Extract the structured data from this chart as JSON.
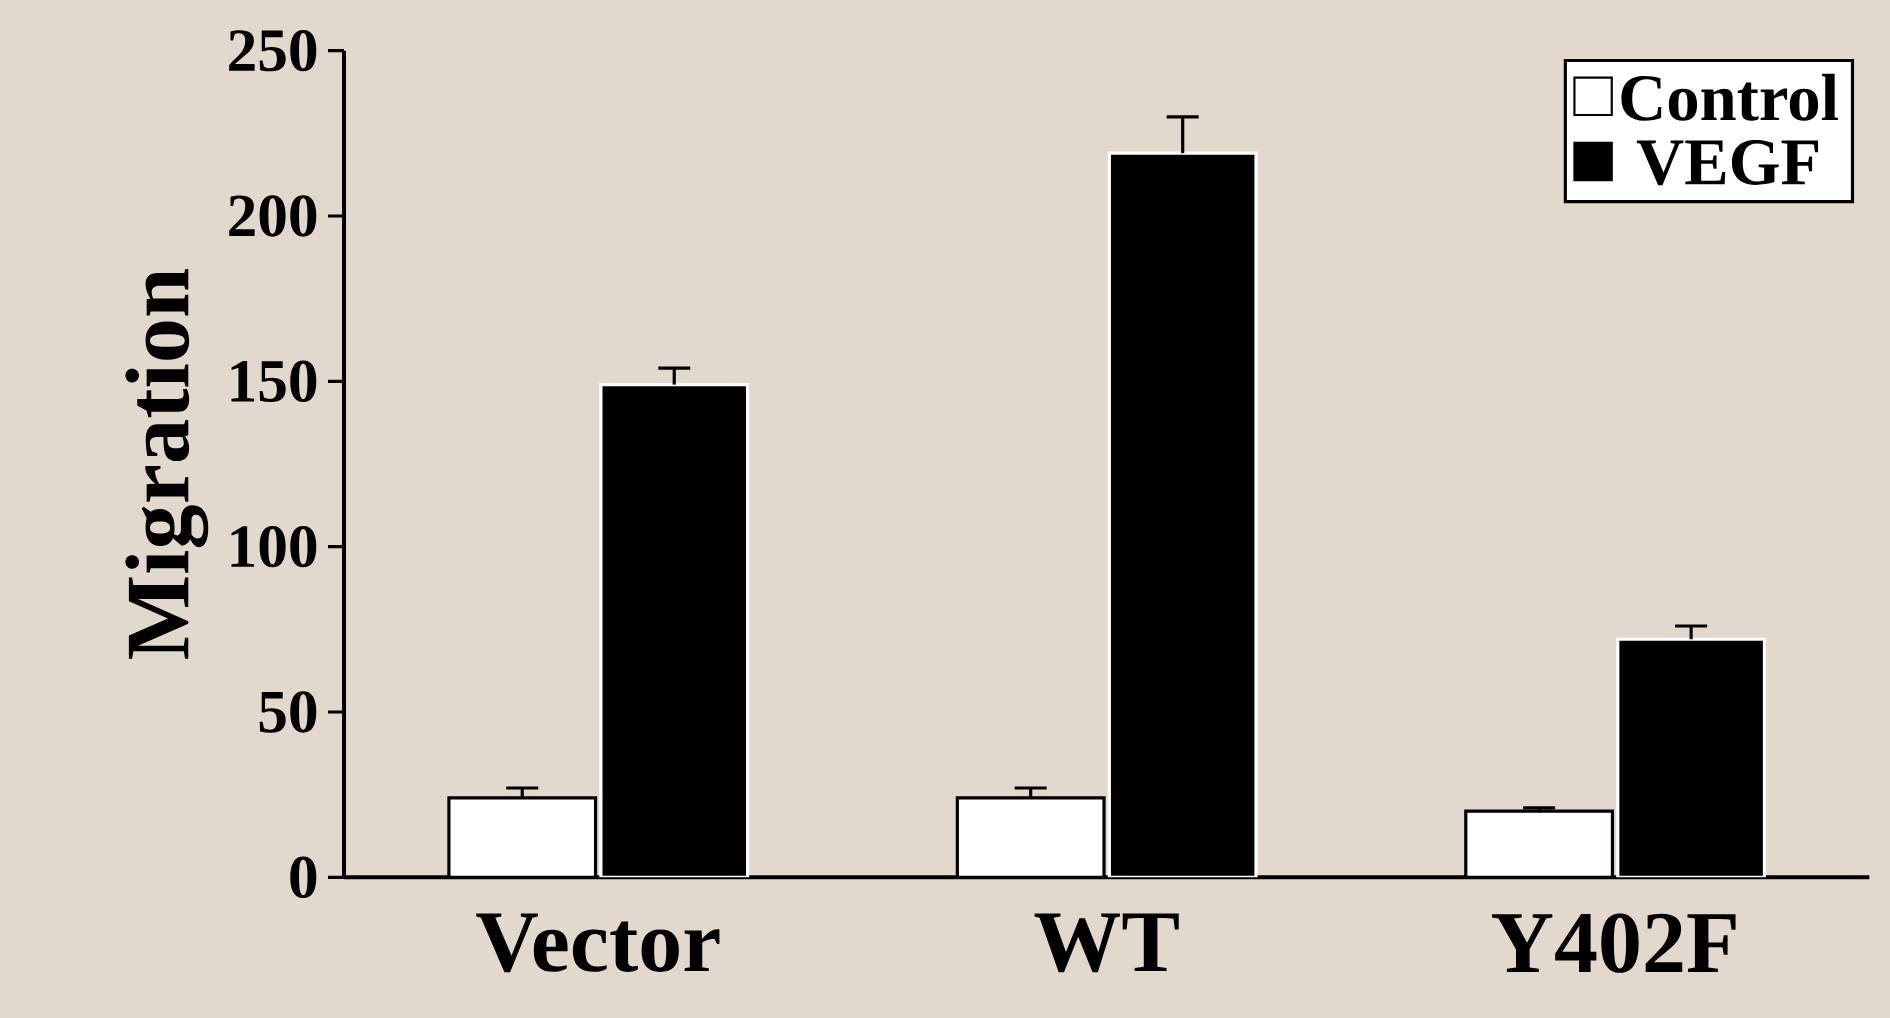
{
  "chart_data": {
    "type": "bar",
    "ylabel": "Migration",
    "categories": [
      "Vector",
      "WT",
      "Y402F"
    ],
    "series": [
      {
        "name": "Control",
        "color": "#ffffff",
        "values": [
          24,
          24,
          20
        ],
        "errors": [
          3,
          3,
          1
        ]
      },
      {
        "name": "VEGF",
        "color": "#000000",
        "values": [
          149,
          219,
          72
        ],
        "errors": [
          5,
          11,
          4
        ]
      }
    ],
    "ylim": [
      0,
      250
    ],
    "yticks": [
      0,
      50,
      100,
      150,
      200,
      250
    ],
    "legend": "top right"
  }
}
